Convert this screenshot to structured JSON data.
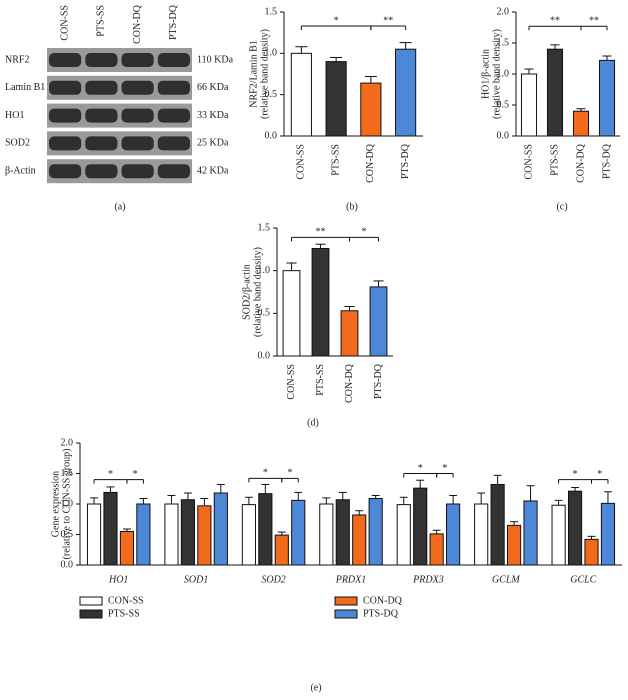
{
  "blot": {
    "columns": [
      "CON-SS",
      "PTS-SS",
      "CON-DQ",
      "PTS-DQ"
    ],
    "rows": [
      {
        "label": "NRF2",
        "size": "110 KDa"
      },
      {
        "label": "Lamin B1",
        "size": "66 KDa"
      },
      {
        "label": "HO1",
        "size": "33 KDa"
      },
      {
        "label": "SOD2",
        "size": "25 KDa"
      },
      {
        "label": "β-Actin",
        "size": "42 KDa"
      }
    ],
    "caption": "(a)"
  },
  "chart_data": [
    {
      "type": "bar",
      "caption": "(b)",
      "ylabel": [
        "NRF2/Lamin B1",
        "(relative band density)"
      ],
      "categories": [
        "CON-SS",
        "PTS-SS",
        "CON-DQ",
        "PTS-DQ"
      ],
      "values": [
        1.0,
        0.9,
        0.64,
        1.05
      ],
      "errors": [
        0.08,
        0.05,
        0.08,
        0.08
      ],
      "colors": [
        "#ffffff",
        "#333333",
        "#f26a1b",
        "#4d88d8"
      ],
      "ylim": [
        0,
        1.5
      ],
      "yticks": [
        {
          "value": 0,
          "label": "0.0"
        },
        0.5,
        {
          "value": 1,
          "label": "1.0"
        },
        1.5
      ],
      "annotations": [
        {
          "text": "*",
          "from": 0,
          "to": 2,
          "y": 1.33
        },
        {
          "text": "**",
          "from": 2,
          "to": 3,
          "y": 1.33
        }
      ]
    },
    {
      "type": "bar",
      "caption": "(c)",
      "ylabel": [
        "HO1/β-actin",
        "(relative band density)"
      ],
      "categories": [
        "CON-SS",
        "PTS-SS",
        "CON-DQ",
        "PTS-DQ"
      ],
      "values": [
        1.0,
        1.4,
        0.4,
        1.22
      ],
      "errors": [
        0.08,
        0.07,
        0.04,
        0.07
      ],
      "colors": [
        "#ffffff",
        "#333333",
        "#f26a1b",
        "#4d88d8"
      ],
      "ylim": [
        0,
        2
      ],
      "yticks": [
        {
          "value": 0,
          "label": "0.0"
        },
        0.5,
        {
          "value": 1,
          "label": "1.0"
        },
        1.5,
        {
          "value": 2,
          "label": "2.0"
        }
      ],
      "annotations": [
        {
          "text": "**",
          "from": 0,
          "to": 2,
          "y": 1.77
        },
        {
          "text": "**",
          "from": 2,
          "to": 3,
          "y": 1.77
        }
      ]
    },
    {
      "type": "bar",
      "caption": "(d)",
      "ylabel": [
        "SOD2/β-actin",
        "(relative band density)"
      ],
      "categories": [
        "CON-SS",
        "PTS-SS",
        "CON-DQ",
        "PTS-DQ"
      ],
      "values": [
        1.0,
        1.26,
        0.53,
        0.81
      ],
      "errors": [
        0.09,
        0.05,
        0.05,
        0.07
      ],
      "colors": [
        "#ffffff",
        "#333333",
        "#f26a1b",
        "#4d88d8"
      ],
      "ylim": [
        0,
        1.5
      ],
      "yticks": [
        {
          "value": 0,
          "label": "0.0"
        },
        0.5,
        {
          "value": 1,
          "label": "1.0"
        },
        1.5
      ],
      "annotations": [
        {
          "text": "**",
          "from": 0,
          "to": 2,
          "y": 1.39
        },
        {
          "text": "*",
          "from": 2,
          "to": 3,
          "y": 1.39
        }
      ]
    },
    {
      "type": "grouped-bar",
      "caption": "(e)",
      "ylabel": [
        "Gene expression",
        "(relative to CON-SS group)"
      ],
      "categories": [
        "HO1",
        "SOD1",
        "SOD2",
        "PRDX1",
        "PRDX3",
        "GCLM",
        "GCLC"
      ],
      "series": [
        {
          "name": "CON-SS",
          "color": "#ffffff",
          "values": [
            1.0,
            1.0,
            0.99,
            1.0,
            0.99,
            1.0,
            0.98
          ],
          "errors": [
            0.1,
            0.14,
            0.12,
            0.1,
            0.12,
            0.18,
            0.08
          ]
        },
        {
          "name": "PTS-SS",
          "color": "#333333",
          "values": [
            1.19,
            1.07,
            1.17,
            1.07,
            1.26,
            1.32,
            1.21
          ],
          "errors": [
            0.09,
            0.11,
            0.15,
            0.12,
            0.13,
            0.15,
            0.06
          ]
        },
        {
          "name": "CON-DQ",
          "color": "#f26a1b",
          "values": [
            0.55,
            0.97,
            0.49,
            0.82,
            0.51,
            0.65,
            0.42
          ],
          "errors": [
            0.04,
            0.12,
            0.05,
            0.07,
            0.06,
            0.06,
            0.05
          ]
        },
        {
          "name": "PTS-DQ",
          "color": "#4d88d8",
          "values": [
            1.0,
            1.18,
            1.06,
            1.09,
            1.0,
            1.05,
            1.01
          ],
          "errors": [
            0.09,
            0.14,
            0.13,
            0.05,
            0.14,
            0.25,
            0.19
          ]
        }
      ],
      "ylim": [
        0,
        2
      ],
      "yticks": [
        {
          "value": 0,
          "label": "0.0"
        },
        0.5,
        {
          "value": 1,
          "label": "1.0"
        },
        1.5,
        {
          "value": 2,
          "label": "2.0"
        }
      ],
      "annotations": [
        {
          "category": 0,
          "text": "*",
          "from": 0,
          "to": 2,
          "y": 1.4
        },
        {
          "category": 0,
          "text": "*",
          "from": 2,
          "to": 3,
          "y": 1.4
        },
        {
          "category": 2,
          "text": "*",
          "from": 0,
          "to": 2,
          "y": 1.42
        },
        {
          "category": 2,
          "text": "*",
          "from": 2,
          "to": 3,
          "y": 1.42
        },
        {
          "category": 4,
          "text": "*",
          "from": 0,
          "to": 2,
          "y": 1.5
        },
        {
          "category": 4,
          "text": "*",
          "from": 2,
          "to": 3,
          "y": 1.5
        },
        {
          "category": 6,
          "text": "*",
          "from": 0,
          "to": 2,
          "y": 1.4
        },
        {
          "category": 6,
          "text": "*",
          "from": 2,
          "to": 3,
          "y": 1.4
        }
      ]
    }
  ]
}
